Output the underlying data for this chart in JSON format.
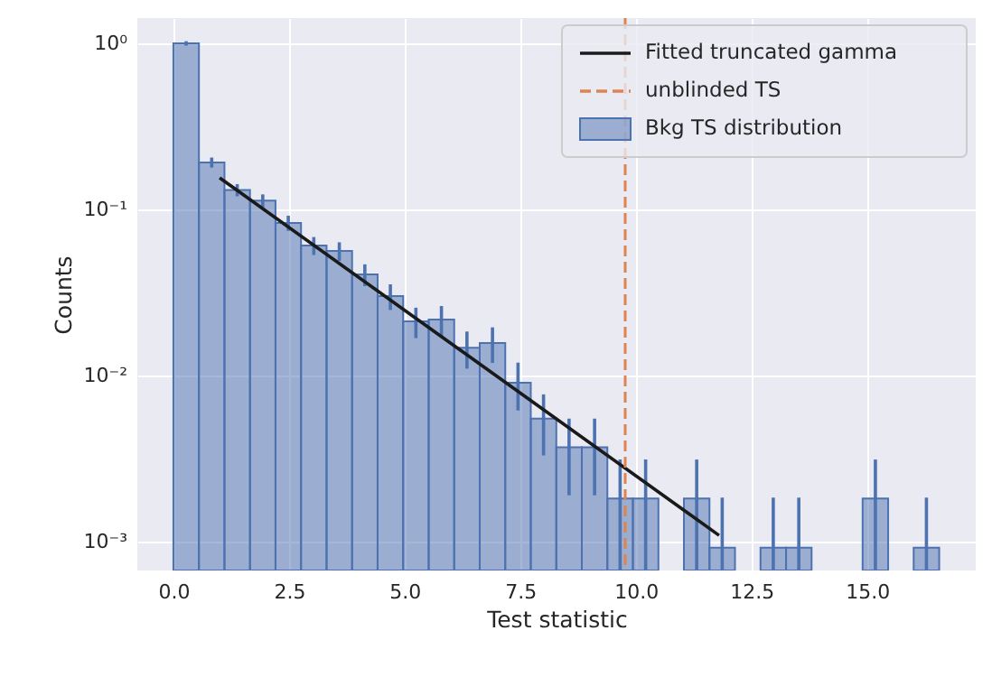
{
  "chart_data": {
    "type": "histogram",
    "xlabel": "Test statistic",
    "ylabel": "Counts",
    "bins": [
      0,
      0.552,
      1.104,
      1.656,
      2.208,
      2.76,
      3.312,
      3.864,
      4.416,
      4.968,
      5.52,
      6.072,
      6.624,
      7.176,
      7.728,
      8.28,
      8.832,
      9.384,
      9.936,
      10.488,
      11.04,
      11.592,
      12.144,
      12.696,
      13.248,
      13.8,
      14.352,
      14.904,
      15.456,
      16.008,
      16.56
    ],
    "series": [
      {
        "name": "Bkg TS distribution",
        "color": "#4c72b0",
        "values": [
          1.0,
          0.192,
          0.131,
          0.113,
          0.083,
          0.0607,
          0.0562,
          0.0406,
          0.0301,
          0.0212,
          0.0217,
          0.0147,
          0.0157,
          0.00906,
          0.0055,
          0.0037,
          0.0037,
          0.00182,
          0.00182,
          null,
          0.00182,
          0.00092,
          null,
          0.00092,
          0.00092,
          null,
          null,
          0.00182,
          null,
          0.00092
        ],
        "errors": [
          0.0303,
          0.0133,
          0.011,
          0.0102,
          0.0087,
          0.0075,
          0.0072,
          0.0061,
          0.0053,
          0.0044,
          0.0045,
          0.0037,
          0.0038,
          0.0029,
          0.0022,
          0.0018,
          0.0018,
          0.0013,
          0.0013,
          null,
          0.0013,
          [
            0.00067,
            0.00184
          ],
          null,
          [
            0.00067,
            0.00184
          ],
          [
            0.00067,
            0.00184
          ],
          null,
          null,
          0.0013,
          null,
          [
            0.00067,
            0.00184
          ]
        ]
      },
      {
        "name": "Fitted truncated gamma",
        "type": "line",
        "color": "#1a1a1a",
        "x": [
          1.0,
          6.4,
          11.8
        ],
        "values": [
          0.155,
          0.013,
          0.00109
        ]
      }
    ],
    "ref_lines": [
      {
        "axis": "x",
        "value": 9.77,
        "label": "unblinded TS",
        "color": "#dd8452",
        "line_style": "dashed"
      }
    ],
    "log": "y",
    "grid": true,
    "legend": "top right",
    "xlim": [
      -0.78,
      17.35
    ],
    "xticks": [
      {
        "value": 0,
        "label": "0.0"
      },
      {
        "value": 2.5,
        "label": "2.5"
      },
      {
        "value": 5,
        "label": "5.0"
      },
      {
        "value": 7.5,
        "label": "7.5"
      },
      {
        "value": 10,
        "label": "10.0"
      },
      {
        "value": 12.5,
        "label": "12.5"
      },
      {
        "value": 15,
        "label": "15.0"
      }
    ],
    "ylim": [
      0.00067,
      1.42
    ],
    "yticks": [
      {
        "value": 0.001,
        "label": "10⁻³"
      },
      {
        "value": 0.01,
        "label": "10⁻²"
      },
      {
        "value": 0.1,
        "label": "10⁻¹"
      },
      {
        "value": 1,
        "label": "10⁰"
      }
    ]
  }
}
